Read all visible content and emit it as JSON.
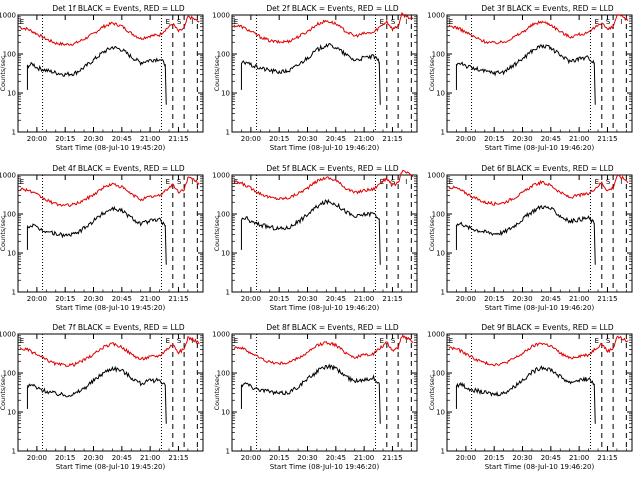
{
  "figure": {
    "panels": [
      {
        "title": "Det 1f BLACK = Events, RED = LLD",
        "start_time": "Start Time (08-Jul-10 19:45:20)"
      },
      {
        "title": "Det 2f BLACK = Events, RED = LLD",
        "start_time": "Start Time (08-Jul-10 19:46:20)"
      },
      {
        "title": "Det 3f BLACK = Events, RED = LLD",
        "start_time": "Start Time (08-Jul-10 19:46:20)"
      },
      {
        "title": "Det 4f BLACK = Events, RED = LLD",
        "start_time": "Start Time (08-Jul-10 19:45:20)"
      },
      {
        "title": "Det 5f BLACK = Events, RED = LLD",
        "start_time": "Start Time (08-Jul-10 19:46:20)"
      },
      {
        "title": "Det 6f BLACK = Events, RED = LLD",
        "start_time": "Start Time (08-Jul-10 19:46:20)"
      },
      {
        "title": "Det 7f BLACK = Events, RED = LLD",
        "start_time": "Start Time (08-Jul-10 19:45:20)"
      },
      {
        "title": "Det 8f BLACK = Events, RED = LLD",
        "start_time": "Start Time (08-Jul-10 19:46:20)"
      },
      {
        "title": "Det 9f BLACK = Events, RED = LLD",
        "start_time": "Start Time (08-Jul-10 19:46:20)"
      }
    ],
    "ylabel": "Counts/sec",
    "ytick_labels": [
      "1",
      "10",
      "100",
      "1000"
    ],
    "xtick_labels": [
      "20:00",
      "20:15",
      "20:30",
      "20:45",
      "21:00",
      "21:15"
    ],
    "markers": [
      "E",
      "S",
      "I"
    ],
    "colors": {
      "events": "#000000",
      "lld": "#e00000",
      "axes": "#000000"
    }
  },
  "chart_data": {
    "type": "line",
    "layout": "3x3 small multiples",
    "x_type": "time (HH:MM)",
    "xlim": [
      "19:50",
      "21:28"
    ],
    "y_scale": "log",
    "ylim": [
      1,
      1000
    ],
    "series_legend": {
      "black": "Events",
      "red": "LLD"
    },
    "lld_profile": {
      "x": [
        "19:50",
        "19:55",
        "20:00",
        "20:05",
        "20:10",
        "20:15",
        "20:20",
        "20:25",
        "20:30",
        "20:35",
        "20:40",
        "20:45",
        "20:50",
        "20:55",
        "21:00",
        "21:05",
        "21:08",
        "21:12",
        "21:15",
        "21:18",
        "21:20",
        "21:23",
        "21:26"
      ],
      "values": [
        480,
        440,
        330,
        240,
        190,
        175,
        185,
        240,
        330,
        500,
        620,
        520,
        340,
        250,
        290,
        310,
        420,
        600,
        380,
        450,
        900,
        800,
        650
      ]
    },
    "events_profile": {
      "x": [
        "19:55",
        "19:58",
        "20:00",
        "20:05",
        "20:10",
        "20:15",
        "20:20",
        "20:25",
        "20:30",
        "20:35",
        "20:40",
        "20:45",
        "20:50",
        "20:55",
        "21:00",
        "21:05",
        "21:08"
      ],
      "values": [
        50,
        55,
        45,
        38,
        33,
        30,
        32,
        45,
        70,
        110,
        150,
        130,
        85,
        60,
        70,
        75,
        55
      ]
    },
    "vertical_lines": [
      {
        "time": "20:03",
        "style": "dotted",
        "label": ""
      },
      {
        "time": "21:06",
        "style": "dotted",
        "label": ""
      },
      {
        "time": "21:12",
        "style": "dashed",
        "label": "E"
      },
      {
        "time": "21:18",
        "style": "dashed",
        "label": "S"
      },
      {
        "time": "21:25",
        "style": "dashed",
        "label": "I"
      }
    ]
  }
}
